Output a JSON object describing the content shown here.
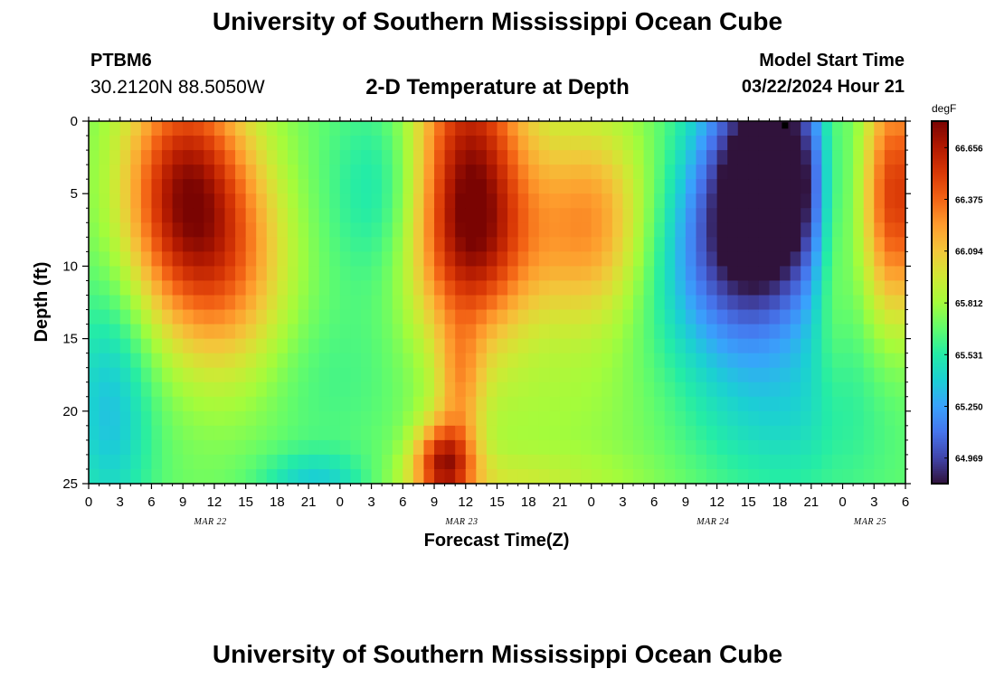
{
  "header": {
    "title": "University of Southern Mississippi Ocean Cube",
    "station": "PTBM6",
    "coordinates": "30.2120N  88.5050W",
    "subtitle": "2-D Temperature at Depth",
    "model_start_label": "Model Start Time",
    "model_start_value": "03/22/2024 Hour 21"
  },
  "footer": {
    "title": "University of Southern Mississippi Ocean Cube"
  },
  "chart_data": {
    "type": "heatmap",
    "xlabel": "Forecast Time(Z)",
    "ylabel": "Depth (ft)",
    "x_ticks": [
      "0",
      "3",
      "6",
      "9",
      "12",
      "15",
      "18",
      "21",
      "0",
      "3",
      "6",
      "9",
      "12",
      "15",
      "18",
      "21",
      "0",
      "3",
      "6",
      "9",
      "12",
      "15",
      "18",
      "21",
      "0",
      "3",
      "6"
    ],
    "day_labels": [
      {
        "label": "MAR 22",
        "hour_index": 15.5
      },
      {
        "label": "MAR 23",
        "hour_index": 47.5
      },
      {
        "label": "MAR 24",
        "hour_index": 79.5
      },
      {
        "label": "MAR 25",
        "hour_index": 99.5
      }
    ],
    "x_range_hours": [
      0,
      78
    ],
    "y_ticks": [
      "0",
      "5",
      "10",
      "15",
      "20",
      "25"
    ],
    "ylim": [
      0,
      25
    ],
    "y_inverted": true,
    "colorbar": {
      "unit": "degF",
      "ticks": [
        "66.656",
        "66.375",
        "66.094",
        "65.812",
        "65.531",
        "65.250",
        "64.969"
      ],
      "min": 64.83,
      "max": 66.8
    },
    "colors": {
      "colormap": [
        "#30123b",
        "#4145ab",
        "#4675ed",
        "#39a2fc",
        "#1bcfd4",
        "#24eca6",
        "#61fc6c",
        "#a4fc3b",
        "#d1e834",
        "#f3c63a",
        "#fe9b2d",
        "#f36315",
        "#d93806",
        "#b11901",
        "#7a0402"
      ]
    },
    "marker": {
      "hour": 66.5,
      "depth": 0.3
    },
    "components": [
      {
        "t": 9,
        "d": 5,
        "st": 4,
        "sd": 6,
        "a": 0.95
      },
      {
        "t": 14,
        "d": 10,
        "st": 4,
        "sd": 6,
        "a": 0.45
      },
      {
        "t": 2,
        "d": 20,
        "st": 3,
        "sd": 6,
        "a": -0.35
      },
      {
        "t": 23,
        "d": 18,
        "st": 6,
        "sd": 4,
        "a": -0.1
      },
      {
        "t": 30,
        "d": 5,
        "st": 4.5,
        "sd": 5,
        "a": -0.35
      },
      {
        "t": 36,
        "d": 4,
        "st": 4,
        "sd": 7,
        "a": 1.1
      },
      {
        "t": 37,
        "d": 9,
        "st": 5,
        "sd": 4,
        "a": 0.3
      },
      {
        "t": 48,
        "d": 7,
        "st": 4,
        "sd": 5,
        "a": 0.55
      },
      {
        "t": 44,
        "d": 20,
        "st": 9,
        "sd": 4,
        "a": 0.1
      },
      {
        "t": 34,
        "d": 23.5,
        "st": 2,
        "sd": 2,
        "a": 0.85
      },
      {
        "t": 35.5,
        "d": 18,
        "st": 1.5,
        "sd": 3,
        "a": 0.35
      },
      {
        "t": 65,
        "d": 4,
        "st": 4.5,
        "sd": 6,
        "a": -1.15
      },
      {
        "t": 60,
        "d": 10,
        "st": 5,
        "sd": 5,
        "a": -0.4
      },
      {
        "t": 66,
        "d": 20,
        "st": 7,
        "sd": 5,
        "a": -0.25
      },
      {
        "t": 77,
        "d": 5,
        "st": 2.5,
        "sd": 6,
        "a": 0.85
      },
      {
        "t": 71,
        "d": 5,
        "st": 1.2,
        "sd": 8,
        "a": 0.3
      },
      {
        "t": 22,
        "d": 25,
        "st": 4,
        "sd": 1.5,
        "a": -0.35
      },
      {
        "t": 38,
        "d": 25,
        "st": 10,
        "sd": 1.5,
        "a": 0.2
      }
    ],
    "base_value": 65.7
  }
}
